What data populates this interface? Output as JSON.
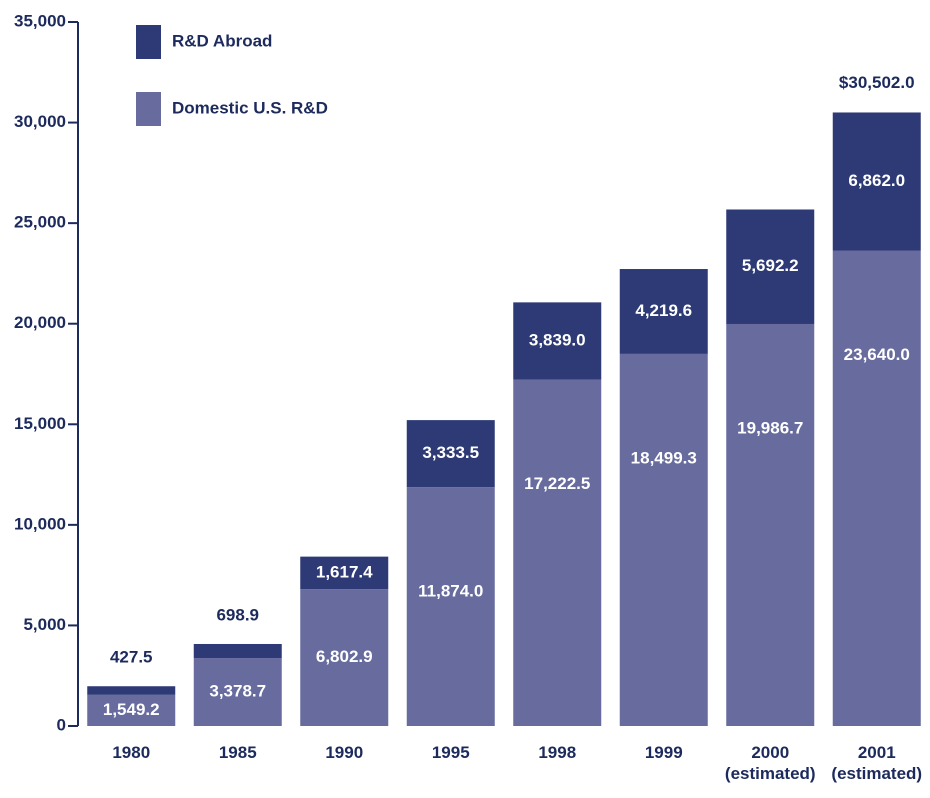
{
  "chart_data": {
    "type": "stacked_bar",
    "categories": [
      "1980",
      "1985",
      "1990",
      "1995",
      "1998",
      "1999",
      "2000\n(estimated)",
      "2001\n(estimated)"
    ],
    "series": [
      {
        "name": "Domestic U.S. R&D",
        "color": "#676b9e",
        "values": [
          1549.2,
          3378.7,
          6802.9,
          11874.0,
          17222.5,
          18499.3,
          19986.7,
          23640.0
        ],
        "value_labels": [
          "1,549.2",
          "3,378.7",
          "6,802.9",
          "11,874.0",
          "17,222.5",
          "18,499.3",
          "19,986.7",
          "23,640.0"
        ]
      },
      {
        "name": "R&D Abroad",
        "color": "#2e3a75",
        "values": [
          427.5,
          698.9,
          1617.4,
          3333.5,
          3839.0,
          4219.6,
          5692.2,
          6862.0
        ],
        "value_labels": [
          "427.5",
          "698.9",
          "1,617.4",
          "3,333.5",
          "3,839.0",
          "4,219.6",
          "5,692.2",
          "6,862.0"
        ]
      }
    ],
    "annotation": "$30,502.0",
    "ylim": [
      0,
      35000
    ],
    "yticks": [
      0,
      {
        "value": 5000,
        "label": "5,000"
      },
      {
        "value": 10000,
        "label": "10,000"
      },
      {
        "value": 15000,
        "label": "15,000"
      },
      {
        "value": 20000,
        "label": "20,000"
      },
      {
        "value": 25000,
        "label": "25,000"
      },
      {
        "value": 30000,
        "label": "30,000"
      },
      {
        "value": 35000,
        "label": "35,000"
      }
    ],
    "legend": "top-left"
  }
}
